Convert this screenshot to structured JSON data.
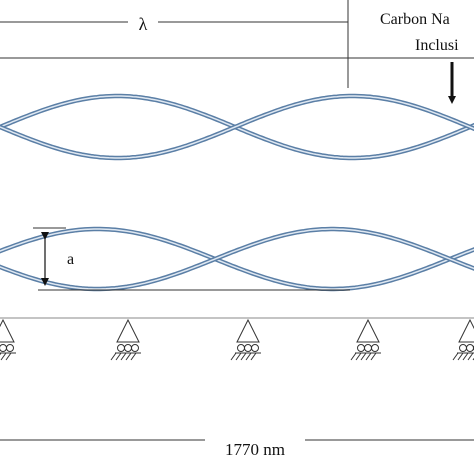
{
  "labels": {
    "wavelength": "λ",
    "inclusion_line1": "Carbon Na",
    "inclusion_line2": "Inclusi",
    "amplitude": "a",
    "length": "1770 nm"
  }
}
